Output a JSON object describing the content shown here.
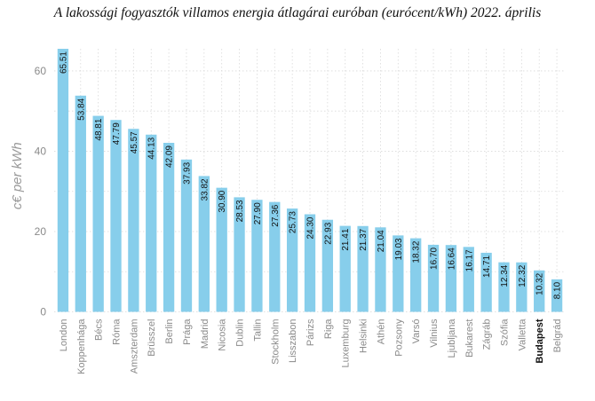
{
  "chart_data": {
    "type": "bar",
    "title": "A lakossági fogyasztók villamos energia átlagárai euróban (eurócent/kWh) 2022. április",
    "xlabel": "",
    "ylabel": "c€ per kWh",
    "ylim": [
      0,
      65.51
    ],
    "yticks": [
      0,
      20,
      40,
      60
    ],
    "grid": true,
    "bar_color": "#87CEEB",
    "highlight_category": "Budapest",
    "categories": [
      "London",
      "Koppenhága",
      "Bécs",
      "Róma",
      "Amszterdam",
      "Brüsszel",
      "Berlin",
      "Prága",
      "Madrid",
      "Nicosia",
      "Dublin",
      "Tallin",
      "Stockholm",
      "Lisszabon",
      "Párizs",
      "Riga",
      "Luxemburg",
      "Helsinki",
      "Athén",
      "Pozsony",
      "Varsó",
      "Vilnius",
      "Ljubljana",
      "Bukarest",
      "Zágráb",
      "Szófia",
      "Valletta",
      "Budapest",
      "Belgrád"
    ],
    "values": [
      65.51,
      53.84,
      48.81,
      47.79,
      45.57,
      44.13,
      42.09,
      37.93,
      33.82,
      30.9,
      28.53,
      27.9,
      27.36,
      25.73,
      24.3,
      22.93,
      21.41,
      21.37,
      21.04,
      19.03,
      18.32,
      16.7,
      16.64,
      16.17,
      14.71,
      12.34,
      12.32,
      10.32,
      8.1
    ],
    "value_labels": [
      "65.51",
      "53.84",
      "48.81",
      "47.79",
      "45.57",
      "44.13",
      "42.09",
      "37.93",
      "33.82",
      "30.90",
      "28.53",
      "27.90",
      "27.36",
      "25.73",
      "24.30",
      "22.93",
      "21.41",
      "21.37",
      "21.04",
      "19.03",
      "18.32",
      "16.70",
      "16.64",
      "16.17",
      "14.71",
      "12.34",
      "12.32",
      "10.32",
      "8.10"
    ]
  }
}
